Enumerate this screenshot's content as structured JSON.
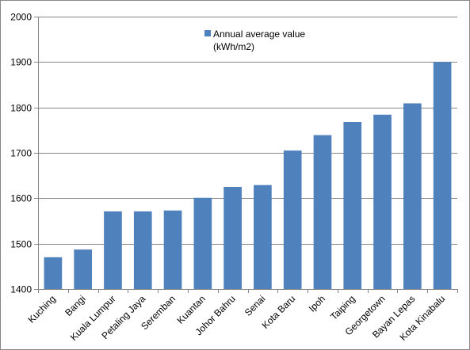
{
  "chart_data": {
    "type": "bar",
    "categories": [
      "Kuching",
      "Bangi",
      "Kuala Lumpur",
      "Petaling Jaya",
      "Seremban",
      "Kuantan",
      "Johor Bahru",
      "Senai",
      "Kota Baru",
      "Ipoh",
      "Taiping",
      "Georgetown",
      "Bayan Lepas",
      "Kota Kinabalu"
    ],
    "series": [
      {
        "name": "Annual average value (kWh/m2)",
        "legend_lines": [
          "Annual average value",
          "(kWh/m2)"
        ],
        "color": "#4F81BD",
        "values": [
          1470,
          1487,
          1571,
          1571,
          1573,
          1601,
          1625,
          1629,
          1705,
          1739,
          1768,
          1784,
          1809,
          1900
        ]
      }
    ],
    "ylim": [
      1400,
      2000
    ],
    "yticks": [
      1400,
      1500,
      1600,
      1700,
      1800,
      1900,
      2000
    ],
    "grid": true,
    "legend_position": "top-center",
    "title": "",
    "xlabel": "",
    "ylabel": ""
  },
  "colors": {
    "bar": "#4F81BD",
    "grid": "#868686",
    "axis": "#868686"
  }
}
